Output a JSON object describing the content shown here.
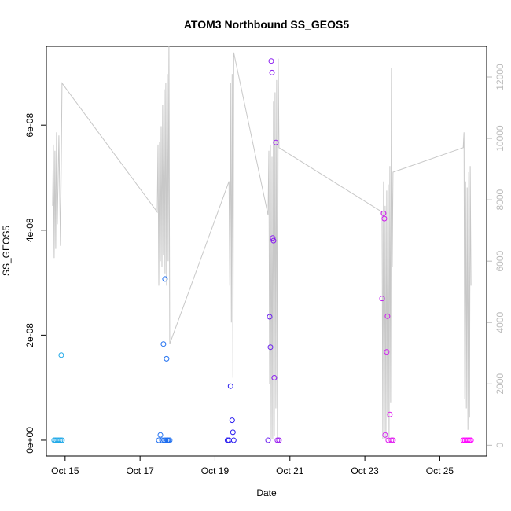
{
  "chart_data": {
    "type": "scatter",
    "title": "ATOM3 Northbound SS_GEOS5",
    "xlabel": "Date",
    "ylabel": "SS_GEOS5",
    "xlim": [
      "2016-10-14 12:00",
      "2016-10-26 06:00"
    ],
    "ylim": [
      -3e-09,
      7.5e-08
    ],
    "x_ticks": [
      "Oct 15",
      "Oct 17",
      "Oct 19",
      "Oct 21",
      "Oct 23",
      "Oct 25"
    ],
    "y_ticks": [
      "0e+00",
      "2e-08",
      "4e-08",
      "6e-08"
    ],
    "y_tick_values": [
      0,
      2e-08,
      4e-08,
      6e-08
    ],
    "y2_ticks": [
      "0",
      "2000",
      "4000",
      "6000",
      "8000",
      "10000",
      "12000"
    ],
    "y2_tick_values": [
      0,
      2000,
      4000,
      6000,
      8000,
      10000,
      12000
    ],
    "y2_lim": [
      -350,
      13000
    ],
    "grid": false,
    "colors": {
      "points_start": "#1ea8e8",
      "points_mid": "#1c2ef0",
      "points_late": "#a020f0",
      "points_end": "#ff00ff",
      "secondary_line": "#c8c8c8",
      "axes": "#000000",
      "right_axis": "#bbbbbb"
    },
    "series": [
      {
        "type": "scatter",
        "axis": "left",
        "points": [
          [
            "2016-10-14 17:00",
            0.0,
            "#1ea8e8"
          ],
          [
            "2016-10-14 18:00",
            0.0,
            "#1ea8e8"
          ],
          [
            "2016-10-14 19:00",
            0.0,
            "#1ea8e8"
          ],
          [
            "2016-10-14 20:00",
            0.0,
            "#1ea8e8"
          ],
          [
            "2016-10-14 21:00",
            0.0,
            "#1ea8e8"
          ],
          [
            "2016-10-14 21:30",
            1.62e-08,
            "#1ea8e8"
          ],
          [
            "2016-10-14 22:00",
            0.0,
            "#1ea8e8"
          ],
          [
            "2016-10-17 12:00",
            0.0,
            "#1f6ff0"
          ],
          [
            "2016-10-17 13:00",
            1e-09,
            "#1f6ff0"
          ],
          [
            "2016-10-17 14:00",
            0.0,
            "#1f6ff0"
          ],
          [
            "2016-10-17 15:00",
            1.83e-08,
            "#1f6ff0"
          ],
          [
            "2016-10-17 15:30",
            0.0,
            "#1f6ff0"
          ],
          [
            "2016-10-17 16:00",
            3.07e-08,
            "#1f6ff0"
          ],
          [
            "2016-10-17 16:30",
            0.0,
            "#1f6ff0"
          ],
          [
            "2016-10-17 17:00",
            1.55e-08,
            "#1f6ff0"
          ],
          [
            "2016-10-17 17:30",
            0.0,
            "#1f6ff0"
          ],
          [
            "2016-10-17 18:00",
            0.0,
            "#1f6ff0"
          ],
          [
            "2016-10-17 19:00",
            0.0,
            "#1f6ff0"
          ],
          [
            "2016-10-19 08:00",
            0.0,
            "#2a1cf0"
          ],
          [
            "2016-10-19 09:00",
            0.0,
            "#2a1cf0"
          ],
          [
            "2016-10-19 10:00",
            1.03e-08,
            "#2a1cf0"
          ],
          [
            "2016-10-19 11:00",
            3.8e-09,
            "#2a1cf0"
          ],
          [
            "2016-10-19 11:30",
            1.5e-09,
            "#2a1cf0"
          ],
          [
            "2016-10-19 12:00",
            0.0,
            "#2a1cf0"
          ],
          [
            "2016-10-20 10:00",
            0.0,
            "#6a1cf0"
          ],
          [
            "2016-10-20 11:00",
            2.35e-08,
            "#6a1cf0"
          ],
          [
            "2016-10-20 11:30",
            1.77e-08,
            "#6a1cf0"
          ],
          [
            "2016-10-20 12:00",
            7.22e-08,
            "#8a1cf0"
          ],
          [
            "2016-10-20 12:30",
            7e-08,
            "#8a1cf0"
          ],
          [
            "2016-10-20 13:00",
            3.85e-08,
            "#8a1cf0"
          ],
          [
            "2016-10-20 13:30",
            3.8e-08,
            "#8a1cf0"
          ],
          [
            "2016-10-20 14:00",
            1.19e-08,
            "#8a1cf0"
          ],
          [
            "2016-10-20 15:00",
            5.67e-08,
            "#9a1cf0"
          ],
          [
            "2016-10-20 16:00",
            0.0,
            "#9a1cf0"
          ],
          [
            "2016-10-20 17:00",
            0.0,
            "#9a1cf0"
          ],
          [
            "2016-10-23 11:00",
            2.7e-08,
            "#c01cf0"
          ],
          [
            "2016-10-23 12:00",
            4.32e-08,
            "#d01cf0"
          ],
          [
            "2016-10-23 12:30",
            4.22e-08,
            "#d01cf0"
          ],
          [
            "2016-10-23 13:00",
            1e-09,
            "#d01cf0"
          ],
          [
            "2016-10-23 14:00",
            1.68e-08,
            "#d01cf0"
          ],
          [
            "2016-10-23 14:30",
            2.36e-08,
            "#d01cf0"
          ],
          [
            "2016-10-23 15:00",
            0.0,
            "#e01cf0"
          ],
          [
            "2016-10-23 16:00",
            4.9e-09,
            "#e01cf0"
          ],
          [
            "2016-10-23 17:00",
            0.0,
            "#e01cf0"
          ],
          [
            "2016-10-23 18:00",
            0.0,
            "#e01cf0"
          ],
          [
            "2016-10-25 15:00",
            0.0,
            "#ff00ff"
          ],
          [
            "2016-10-25 16:00",
            0.0,
            "#ff00ff"
          ],
          [
            "2016-10-25 17:00",
            0.0,
            "#ff00ff"
          ],
          [
            "2016-10-25 18:00",
            0.0,
            "#ff00ff"
          ],
          [
            "2016-10-25 19:00",
            0.0,
            "#ff00ff"
          ],
          [
            "2016-10-25 20:00",
            0.0,
            "#ff00ff"
          ]
        ]
      },
      {
        "type": "line",
        "axis": "right",
        "points": [
          [
            "2016-10-14 16:00",
            7800
          ],
          [
            "2016-10-14 16:30",
            9800
          ],
          [
            "2016-10-14 17:00",
            6100
          ],
          [
            "2016-10-14 17:30",
            9600
          ],
          [
            "2016-10-14 18:00",
            6400
          ],
          [
            "2016-10-14 18:30",
            10200
          ],
          [
            "2016-10-14 19:00",
            7200
          ],
          [
            "2016-10-14 20:00",
            10100
          ],
          [
            "2016-10-14 21:00",
            6500
          ],
          [
            "2016-10-14 22:00",
            11800
          ],
          [
            "2016-10-17 11:00",
            7600
          ],
          [
            "2016-10-17 11:30",
            9800
          ],
          [
            "2016-10-17 12:00",
            5200
          ],
          [
            "2016-10-17 12:30",
            9900
          ],
          [
            "2016-10-17 13:00",
            6000
          ],
          [
            "2016-10-17 13:30",
            10400
          ],
          [
            "2016-10-17 14:00",
            5800
          ],
          [
            "2016-10-17 14:30",
            11100
          ],
          [
            "2016-10-17 15:00",
            6200
          ],
          [
            "2016-10-17 15:30",
            11600
          ],
          [
            "2016-10-17 16:00",
            5600
          ],
          [
            "2016-10-17 16:30",
            11800
          ],
          [
            "2016-10-17 17:00",
            5200
          ],
          [
            "2016-10-17 17:30",
            12100
          ],
          [
            "2016-10-17 18:00",
            6000
          ],
          [
            "2016-10-17 18:30",
            13000
          ],
          [
            "2016-10-17 19:00",
            3300
          ],
          [
            "2016-10-19 09:00",
            8600
          ],
          [
            "2016-10-19 09:30",
            5200
          ],
          [
            "2016-10-19 10:00",
            11800
          ],
          [
            "2016-10-19 10:30",
            4000
          ],
          [
            "2016-10-19 11:00",
            12100
          ],
          [
            "2016-10-19 11:30",
            2200
          ],
          [
            "2016-10-19 12:00",
            12800
          ],
          [
            "2016-10-20 10:00",
            7500
          ],
          [
            "2016-10-20 10:30",
            9600
          ],
          [
            "2016-10-20 11:00",
            2000
          ],
          [
            "2016-10-20 11:30",
            9800
          ],
          [
            "2016-10-20 12:00",
            200
          ],
          [
            "2016-10-20 12:30",
            9400
          ],
          [
            "2016-10-20 13:00",
            200
          ],
          [
            "2016-10-20 13:30",
            11200
          ],
          [
            "2016-10-20 14:00",
            300
          ],
          [
            "2016-10-20 14:30",
            11500
          ],
          [
            "2016-10-20 15:00",
            1200
          ],
          [
            "2016-10-20 15:30",
            11900
          ],
          [
            "2016-10-20 16:00",
            200
          ],
          [
            "2016-10-20 16:30",
            12600
          ],
          [
            "2016-10-20 17:00",
            9700
          ],
          [
            "2016-10-23 11:00",
            7600
          ],
          [
            "2016-10-23 11:30",
            200
          ],
          [
            "2016-10-23 12:00",
            8600
          ],
          [
            "2016-10-23 12:30",
            200
          ],
          [
            "2016-10-23 13:00",
            7800
          ],
          [
            "2016-10-23 13:30",
            200
          ],
          [
            "2016-10-23 14:00",
            8300
          ],
          [
            "2016-10-23 14:30",
            900
          ],
          [
            "2016-10-23 15:00",
            8500
          ],
          [
            "2016-10-23 15:30",
            200
          ],
          [
            "2016-10-23 16:00",
            9100
          ],
          [
            "2016-10-23 16:30",
            1400
          ],
          [
            "2016-10-23 17:00",
            12300
          ],
          [
            "2016-10-23 17:30",
            5800
          ],
          [
            "2016-10-23 18:00",
            8900
          ],
          [
            "2016-10-25 15:00",
            9700
          ],
          [
            "2016-10-25 15:30",
            10200
          ],
          [
            "2016-10-25 16:00",
            1500
          ],
          [
            "2016-10-25 16:30",
            8600
          ],
          [
            "2016-10-25 17:00",
            1200
          ],
          [
            "2016-10-25 17:30",
            8400
          ],
          [
            "2016-10-25 18:00",
            500
          ],
          [
            "2016-10-25 18:30",
            8900
          ],
          [
            "2016-10-25 19:00",
            900
          ],
          [
            "2016-10-25 19:30",
            9100
          ],
          [
            "2016-10-25 20:00",
            5200
          ]
        ]
      }
    ]
  }
}
